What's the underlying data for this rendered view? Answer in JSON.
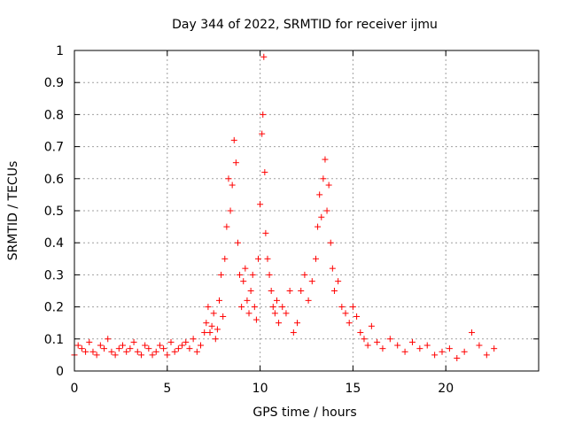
{
  "chart_data": {
    "type": "scatter",
    "title": "Day 344 of 2022, SRMTID for receiver ijmu",
    "xlabel": "GPS time / hours",
    "ylabel": "SRMTID / TECUs",
    "xlim": [
      0,
      25
    ],
    "ylim": [
      0,
      1
    ],
    "xticks": [
      0,
      5,
      10,
      15,
      20
    ],
    "xtick_labels": [
      "0",
      "5",
      "10",
      "15",
      "20"
    ],
    "yticks": [
      0,
      0.1,
      0.2,
      0.3,
      0.4,
      0.5,
      0.6,
      0.7,
      0.8,
      0.9,
      1
    ],
    "ytick_labels": [
      "0",
      "0.1",
      "0.2",
      "0.3",
      "0.4",
      "0.5",
      "0.6",
      "0.7",
      "0.8",
      "0.9",
      "1"
    ],
    "grid": true,
    "marker": "+",
    "color": "#ff0000",
    "series": [
      {
        "name": "SRMTID",
        "x": [
          0.0,
          0.2,
          0.4,
          0.6,
          0.8,
          1.0,
          1.2,
          1.4,
          1.6,
          1.8,
          2.0,
          2.2,
          2.4,
          2.6,
          2.8,
          3.0,
          3.2,
          3.4,
          3.6,
          3.8,
          4.0,
          4.2,
          4.4,
          4.6,
          4.8,
          5.0,
          5.2,
          5.4,
          5.6,
          5.8,
          6.0,
          6.2,
          6.4,
          6.6,
          6.8,
          7.0,
          7.1,
          7.2,
          7.3,
          7.4,
          7.5,
          7.6,
          7.7,
          7.8,
          7.9,
          8.0,
          8.1,
          8.2,
          8.3,
          8.4,
          8.5,
          8.6,
          8.7,
          8.8,
          8.9,
          9.0,
          9.1,
          9.2,
          9.3,
          9.4,
          9.5,
          9.6,
          9.7,
          9.8,
          9.9,
          10.0,
          10.1,
          10.15,
          10.2,
          10.25,
          10.3,
          10.4,
          10.5,
          10.6,
          10.7,
          10.8,
          10.9,
          11.0,
          11.2,
          11.4,
          11.6,
          11.8,
          12.0,
          12.2,
          12.4,
          12.6,
          12.8,
          13.0,
          13.1,
          13.2,
          13.3,
          13.4,
          13.5,
          13.6,
          13.7,
          13.8,
          13.9,
          14.0,
          14.2,
          14.4,
          14.6,
          14.8,
          15.0,
          15.2,
          15.4,
          15.6,
          15.8,
          16.0,
          16.3,
          16.6,
          17.0,
          17.4,
          17.8,
          18.2,
          18.6,
          19.0,
          19.4,
          19.8,
          20.2,
          20.6,
          21.0,
          21.4,
          21.8,
          22.2,
          22.6
        ],
        "y": [
          0.05,
          0.08,
          0.07,
          0.06,
          0.09,
          0.06,
          0.05,
          0.08,
          0.07,
          0.1,
          0.06,
          0.05,
          0.07,
          0.08,
          0.06,
          0.07,
          0.09,
          0.06,
          0.05,
          0.08,
          0.07,
          0.05,
          0.06,
          0.08,
          0.07,
          0.05,
          0.09,
          0.06,
          0.07,
          0.08,
          0.09,
          0.07,
          0.1,
          0.06,
          0.08,
          0.12,
          0.15,
          0.2,
          0.12,
          0.14,
          0.18,
          0.1,
          0.13,
          0.22,
          0.3,
          0.17,
          0.35,
          0.45,
          0.6,
          0.5,
          0.58,
          0.72,
          0.65,
          0.4,
          0.3,
          0.2,
          0.28,
          0.32,
          0.22,
          0.18,
          0.25,
          0.3,
          0.2,
          0.16,
          0.35,
          0.52,
          0.74,
          0.8,
          0.98,
          0.62,
          0.43,
          0.35,
          0.3,
          0.25,
          0.2,
          0.18,
          0.22,
          0.15,
          0.2,
          0.18,
          0.25,
          0.12,
          0.15,
          0.25,
          0.3,
          0.22,
          0.28,
          0.35,
          0.45,
          0.55,
          0.48,
          0.6,
          0.66,
          0.5,
          0.58,
          0.4,
          0.32,
          0.25,
          0.28,
          0.2,
          0.18,
          0.15,
          0.2,
          0.17,
          0.12,
          0.1,
          0.08,
          0.14,
          0.09,
          0.07,
          0.1,
          0.08,
          0.06,
          0.09,
          0.07,
          0.08,
          0.05,
          0.06,
          0.07,
          0.04,
          0.06,
          0.12,
          0.08,
          0.05,
          0.07
        ]
      }
    ]
  }
}
